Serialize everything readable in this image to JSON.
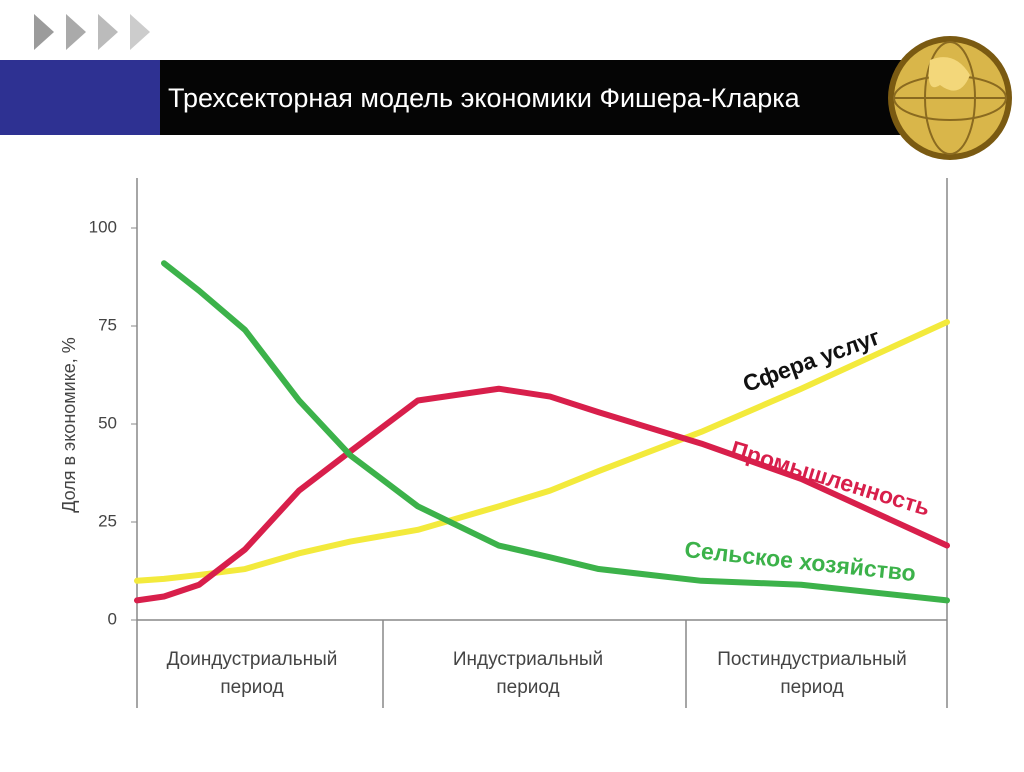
{
  "chart_data": {
    "type": "line",
    "title": "Трехсекторная модель экономики Фишера-Кларка",
    "y_label": "Доля в экономике, %",
    "categories": [
      "Доиндустриальный период",
      "Индустриальный период",
      "Постиндустриальный период"
    ],
    "x": [
      0,
      0.1,
      0.23,
      0.4,
      0.6,
      0.79,
      1.04,
      1.34,
      1.53,
      1.71,
      2.09,
      2.46,
      3
    ],
    "xlim": [
      0,
      3
    ],
    "ylim": [
      0,
      100
    ],
    "yticks": [
      0,
      25,
      50,
      75,
      100
    ],
    "series": [
      {
        "name": "Сфера услуг",
        "color": "#f3ea3c",
        "values": [
          10,
          10.5,
          11.5,
          13,
          17,
          20,
          23,
          29,
          33,
          38,
          48,
          59,
          76
        ]
      },
      {
        "name": "Промышленность",
        "color": "#d81f4b",
        "values": [
          5,
          6,
          9,
          18,
          33,
          43,
          56,
          59,
          57,
          53,
          45,
          36,
          19
        ]
      },
      {
        "name": "Сельское хозяйство",
        "color": "#3cb24a",
        "values": [
          null,
          91,
          84,
          74,
          56,
          42,
          29,
          19,
          16,
          13,
          10,
          9,
          5
        ]
      }
    ]
  }
}
